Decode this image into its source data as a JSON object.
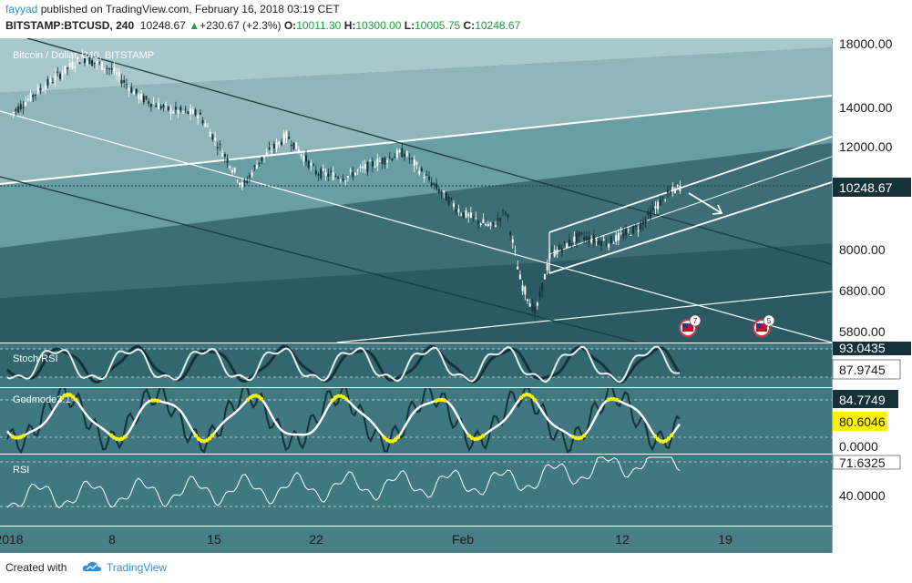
{
  "header": {
    "publisher": "fayyad",
    "published_text": " published on TradingView.com, February 16, 2018 03:19 CET",
    "symbol": "BITSTAMP:BTCUSD, 240",
    "last": "10248.67",
    "change": "+230.67 (+2.3%)",
    "o_label": "O:",
    "o": "10011.30",
    "h_label": "H:",
    "h": "10300.00",
    "l_label": "L:",
    "l": "10005.75",
    "c_label": "C:",
    "c": "10248.67"
  },
  "footer": {
    "created_with": "Created with",
    "brand": "TradingView"
  },
  "colors": {
    "bg": "#4a7f87",
    "band1": "#a9c8cc",
    "band2": "#8fb6bb",
    "band3": "#6a9ea5",
    "band4": "#3d6e76",
    "band5": "#2b5a62",
    "candle": "#ffffff",
    "candle_dark": "#15323a",
    "trend_dark": "#1c3a40",
    "panel_bg": "#3f7880",
    "axis_bg": "#ffffff",
    "highlight": "#fff200"
  },
  "chart_data": {
    "type": "candlestick",
    "title": "Bitcoin / Dollar, 240, BITSTAMP",
    "y_scale": "log",
    "ylim": [
      5200,
      19000
    ],
    "y_ticks": [
      "18000.00",
      "14000.00",
      "12000.00",
      "8000.00",
      "6800.00",
      "5800.00"
    ],
    "last_price_label": "10248.67",
    "x_ticks": [
      "2018",
      "8",
      "15",
      "22",
      "Feb",
      "12",
      "19"
    ],
    "x_dates": [
      "2018-01-01",
      "2018-01-08",
      "2018-01-15",
      "2018-01-22",
      "2018-02-01",
      "2018-02-12",
      "2018-02-19"
    ],
    "close_path": [
      [
        "2018-01-01",
        13500
      ],
      [
        "2018-01-03",
        14900
      ],
      [
        "2018-01-06",
        17000
      ],
      [
        "2018-01-08",
        16200
      ],
      [
        "2018-01-10",
        14500
      ],
      [
        "2018-01-12",
        13800
      ],
      [
        "2018-01-14",
        13600
      ],
      [
        "2018-01-16",
        11300
      ],
      [
        "2018-01-17",
        10200
      ],
      [
        "2018-01-18",
        11200
      ],
      [
        "2018-01-20",
        12500
      ],
      [
        "2018-01-22",
        10800
      ],
      [
        "2018-01-24",
        10600
      ],
      [
        "2018-01-26",
        11200
      ],
      [
        "2018-01-28",
        11700
      ],
      [
        "2018-01-30",
        10300
      ],
      [
        "2018-02-01",
        9200
      ],
      [
        "2018-02-03",
        8700
      ],
      [
        "2018-02-04",
        9300
      ],
      [
        "2018-02-05",
        7000
      ],
      [
        "2018-02-06",
        6200
      ],
      [
        "2018-02-07",
        7800
      ],
      [
        "2018-02-09",
        8400
      ],
      [
        "2018-02-11",
        8200
      ],
      [
        "2018-02-13",
        8700
      ],
      [
        "2018-02-15",
        9900
      ],
      [
        "2018-02-16",
        10248.67
      ]
    ],
    "events": [
      "7",
      "5"
    ],
    "indicators": [
      {
        "name": "Stoch RSI",
        "values": [
          "93.0435",
          "87.9745"
        ]
      },
      {
        "name": "Godmode3.1",
        "values": [
          "84.7749",
          "80.6046",
          "0.0000"
        ]
      },
      {
        "name": "RSI",
        "values": [
          "71.6325",
          "40.0000"
        ]
      }
    ]
  }
}
